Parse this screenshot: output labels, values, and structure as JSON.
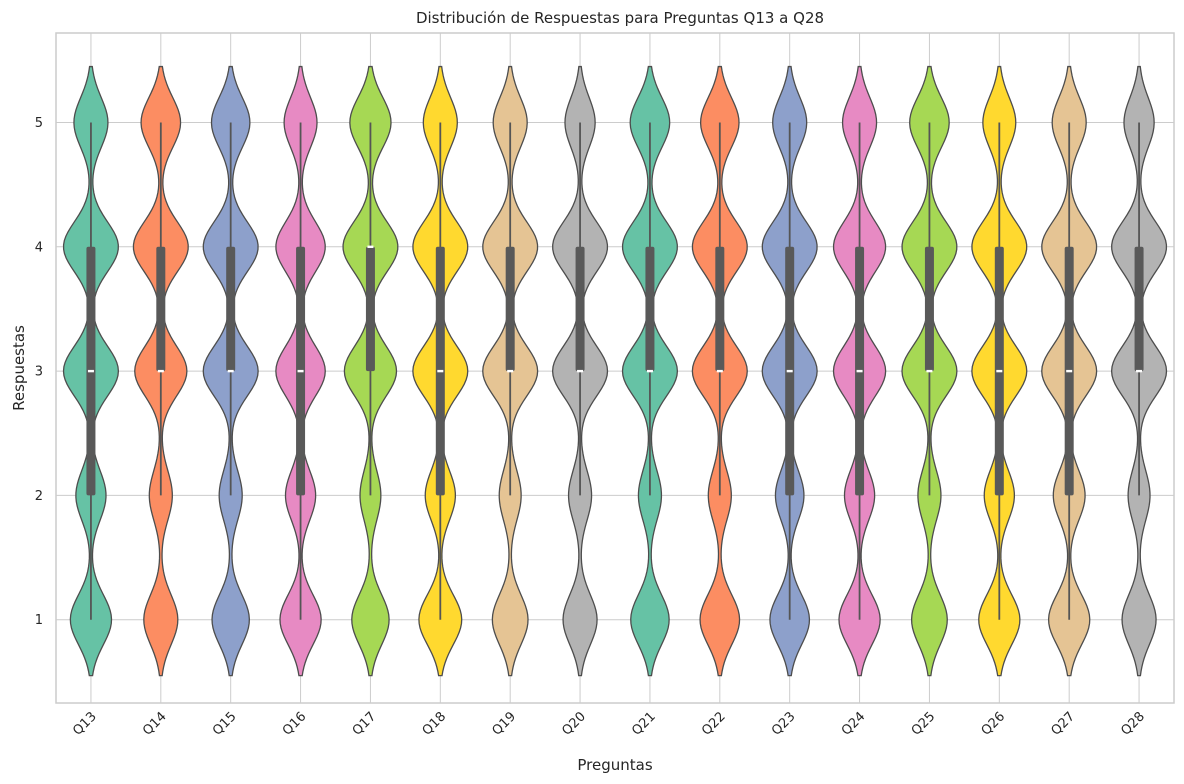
{
  "chart_data": {
    "type": "violin",
    "title": "Distribución de Respuestas para Preguntas Q13 a Q28",
    "xlabel": "Preguntas",
    "ylabel": "Respuestas",
    "ylim": [
      0.33,
      5.72
    ],
    "yticks": [
      "1",
      "2",
      "3",
      "4",
      "5"
    ],
    "grid": true,
    "palette": [
      "#66c2a5",
      "#fc8d62",
      "#8da0cb",
      "#e78ac3",
      "#a6d854",
      "#ffd92f",
      "#e5c494",
      "#b3b3b3"
    ],
    "categories": [
      "Q13",
      "Q14",
      "Q15",
      "Q16",
      "Q17",
      "Q18",
      "Q19",
      "Q20",
      "Q21",
      "Q22",
      "Q23",
      "Q24",
      "Q25",
      "Q26",
      "Q27",
      "Q28"
    ],
    "questions": [
      {
        "name": "Q13",
        "density": {
          "1": 0.75,
          "2": 0.55,
          "3": 1.0,
          "4": 1.0,
          "5": 0.62
        },
        "q1": 2,
        "median": 3,
        "q3": 4,
        "whisker": [
          1,
          5
        ]
      },
      {
        "name": "Q14",
        "density": {
          "1": 0.62,
          "2": 0.42,
          "3": 0.95,
          "4": 1.0,
          "5": 0.72
        },
        "q1": 3,
        "median": 3,
        "q3": 4,
        "whisker": [
          2,
          5
        ]
      },
      {
        "name": "Q15",
        "density": {
          "1": 0.68,
          "2": 0.42,
          "3": 1.0,
          "4": 1.0,
          "5": 0.7
        },
        "q1": 3,
        "median": 3,
        "q3": 4,
        "whisker": [
          2,
          5
        ]
      },
      {
        "name": "Q16",
        "density": {
          "1": 0.75,
          "2": 0.55,
          "3": 0.9,
          "4": 0.9,
          "5": 0.6
        },
        "q1": 2,
        "median": 3,
        "q3": 4,
        "whisker": [
          1,
          5
        ]
      },
      {
        "name": "Q17",
        "density": {
          "1": 0.68,
          "2": 0.38,
          "3": 0.95,
          "4": 1.0,
          "5": 0.75
        },
        "q1": 3,
        "median": 4,
        "q3": 4,
        "whisker": [
          2,
          5
        ]
      },
      {
        "name": "Q18",
        "density": {
          "1": 0.78,
          "2": 0.55,
          "3": 1.0,
          "4": 1.0,
          "5": 0.62
        },
        "q1": 2,
        "median": 3,
        "q3": 4,
        "whisker": [
          1,
          5
        ]
      },
      {
        "name": "Q19",
        "density": {
          "1": 0.65,
          "2": 0.4,
          "3": 1.0,
          "4": 1.0,
          "5": 0.62
        },
        "q1": 3,
        "median": 3,
        "q3": 4,
        "whisker": [
          2,
          5
        ]
      },
      {
        "name": "Q20",
        "density": {
          "1": 0.62,
          "2": 0.42,
          "3": 1.0,
          "4": 1.0,
          "5": 0.55
        },
        "q1": 3,
        "median": 3,
        "q3": 4,
        "whisker": [
          2,
          5
        ]
      },
      {
        "name": "Q21",
        "density": {
          "1": 0.7,
          "2": 0.42,
          "3": 1.0,
          "4": 1.0,
          "5": 0.72
        },
        "q1": 3,
        "median": 3,
        "q3": 4,
        "whisker": [
          2,
          5
        ]
      },
      {
        "name": "Q22",
        "density": {
          "1": 0.72,
          "2": 0.42,
          "3": 1.0,
          "4": 1.0,
          "5": 0.7
        },
        "q1": 3,
        "median": 3,
        "q3": 4,
        "whisker": [
          2,
          5
        ]
      },
      {
        "name": "Q23",
        "density": {
          "1": 0.72,
          "2": 0.52,
          "3": 1.0,
          "4": 1.0,
          "5": 0.62
        },
        "q1": 2,
        "median": 3,
        "q3": 4,
        "whisker": [
          1,
          5
        ]
      },
      {
        "name": "Q24",
        "density": {
          "1": 0.75,
          "2": 0.55,
          "3": 0.95,
          "4": 0.95,
          "5": 0.62
        },
        "q1": 2,
        "median": 3,
        "q3": 4,
        "whisker": [
          1,
          5
        ]
      },
      {
        "name": "Q25",
        "density": {
          "1": 0.65,
          "2": 0.42,
          "3": 1.0,
          "4": 1.0,
          "5": 0.72
        },
        "q1": 3,
        "median": 3,
        "q3": 4,
        "whisker": [
          2,
          5
        ]
      },
      {
        "name": "Q26",
        "density": {
          "1": 0.75,
          "2": 0.55,
          "3": 1.0,
          "4": 1.0,
          "5": 0.6
        },
        "q1": 2,
        "median": 3,
        "q3": 4,
        "whisker": [
          1,
          5
        ]
      },
      {
        "name": "Q27",
        "density": {
          "1": 0.75,
          "2": 0.58,
          "3": 1.0,
          "4": 1.0,
          "5": 0.62
        },
        "q1": 2,
        "median": 3,
        "q3": 4,
        "whisker": [
          1,
          5
        ]
      },
      {
        "name": "Q28",
        "density": {
          "1": 0.62,
          "2": 0.4,
          "3": 1.0,
          "4": 1.0,
          "5": 0.55
        },
        "q1": 3,
        "median": 3,
        "q3": 4,
        "whisker": [
          2,
          5
        ]
      }
    ]
  }
}
